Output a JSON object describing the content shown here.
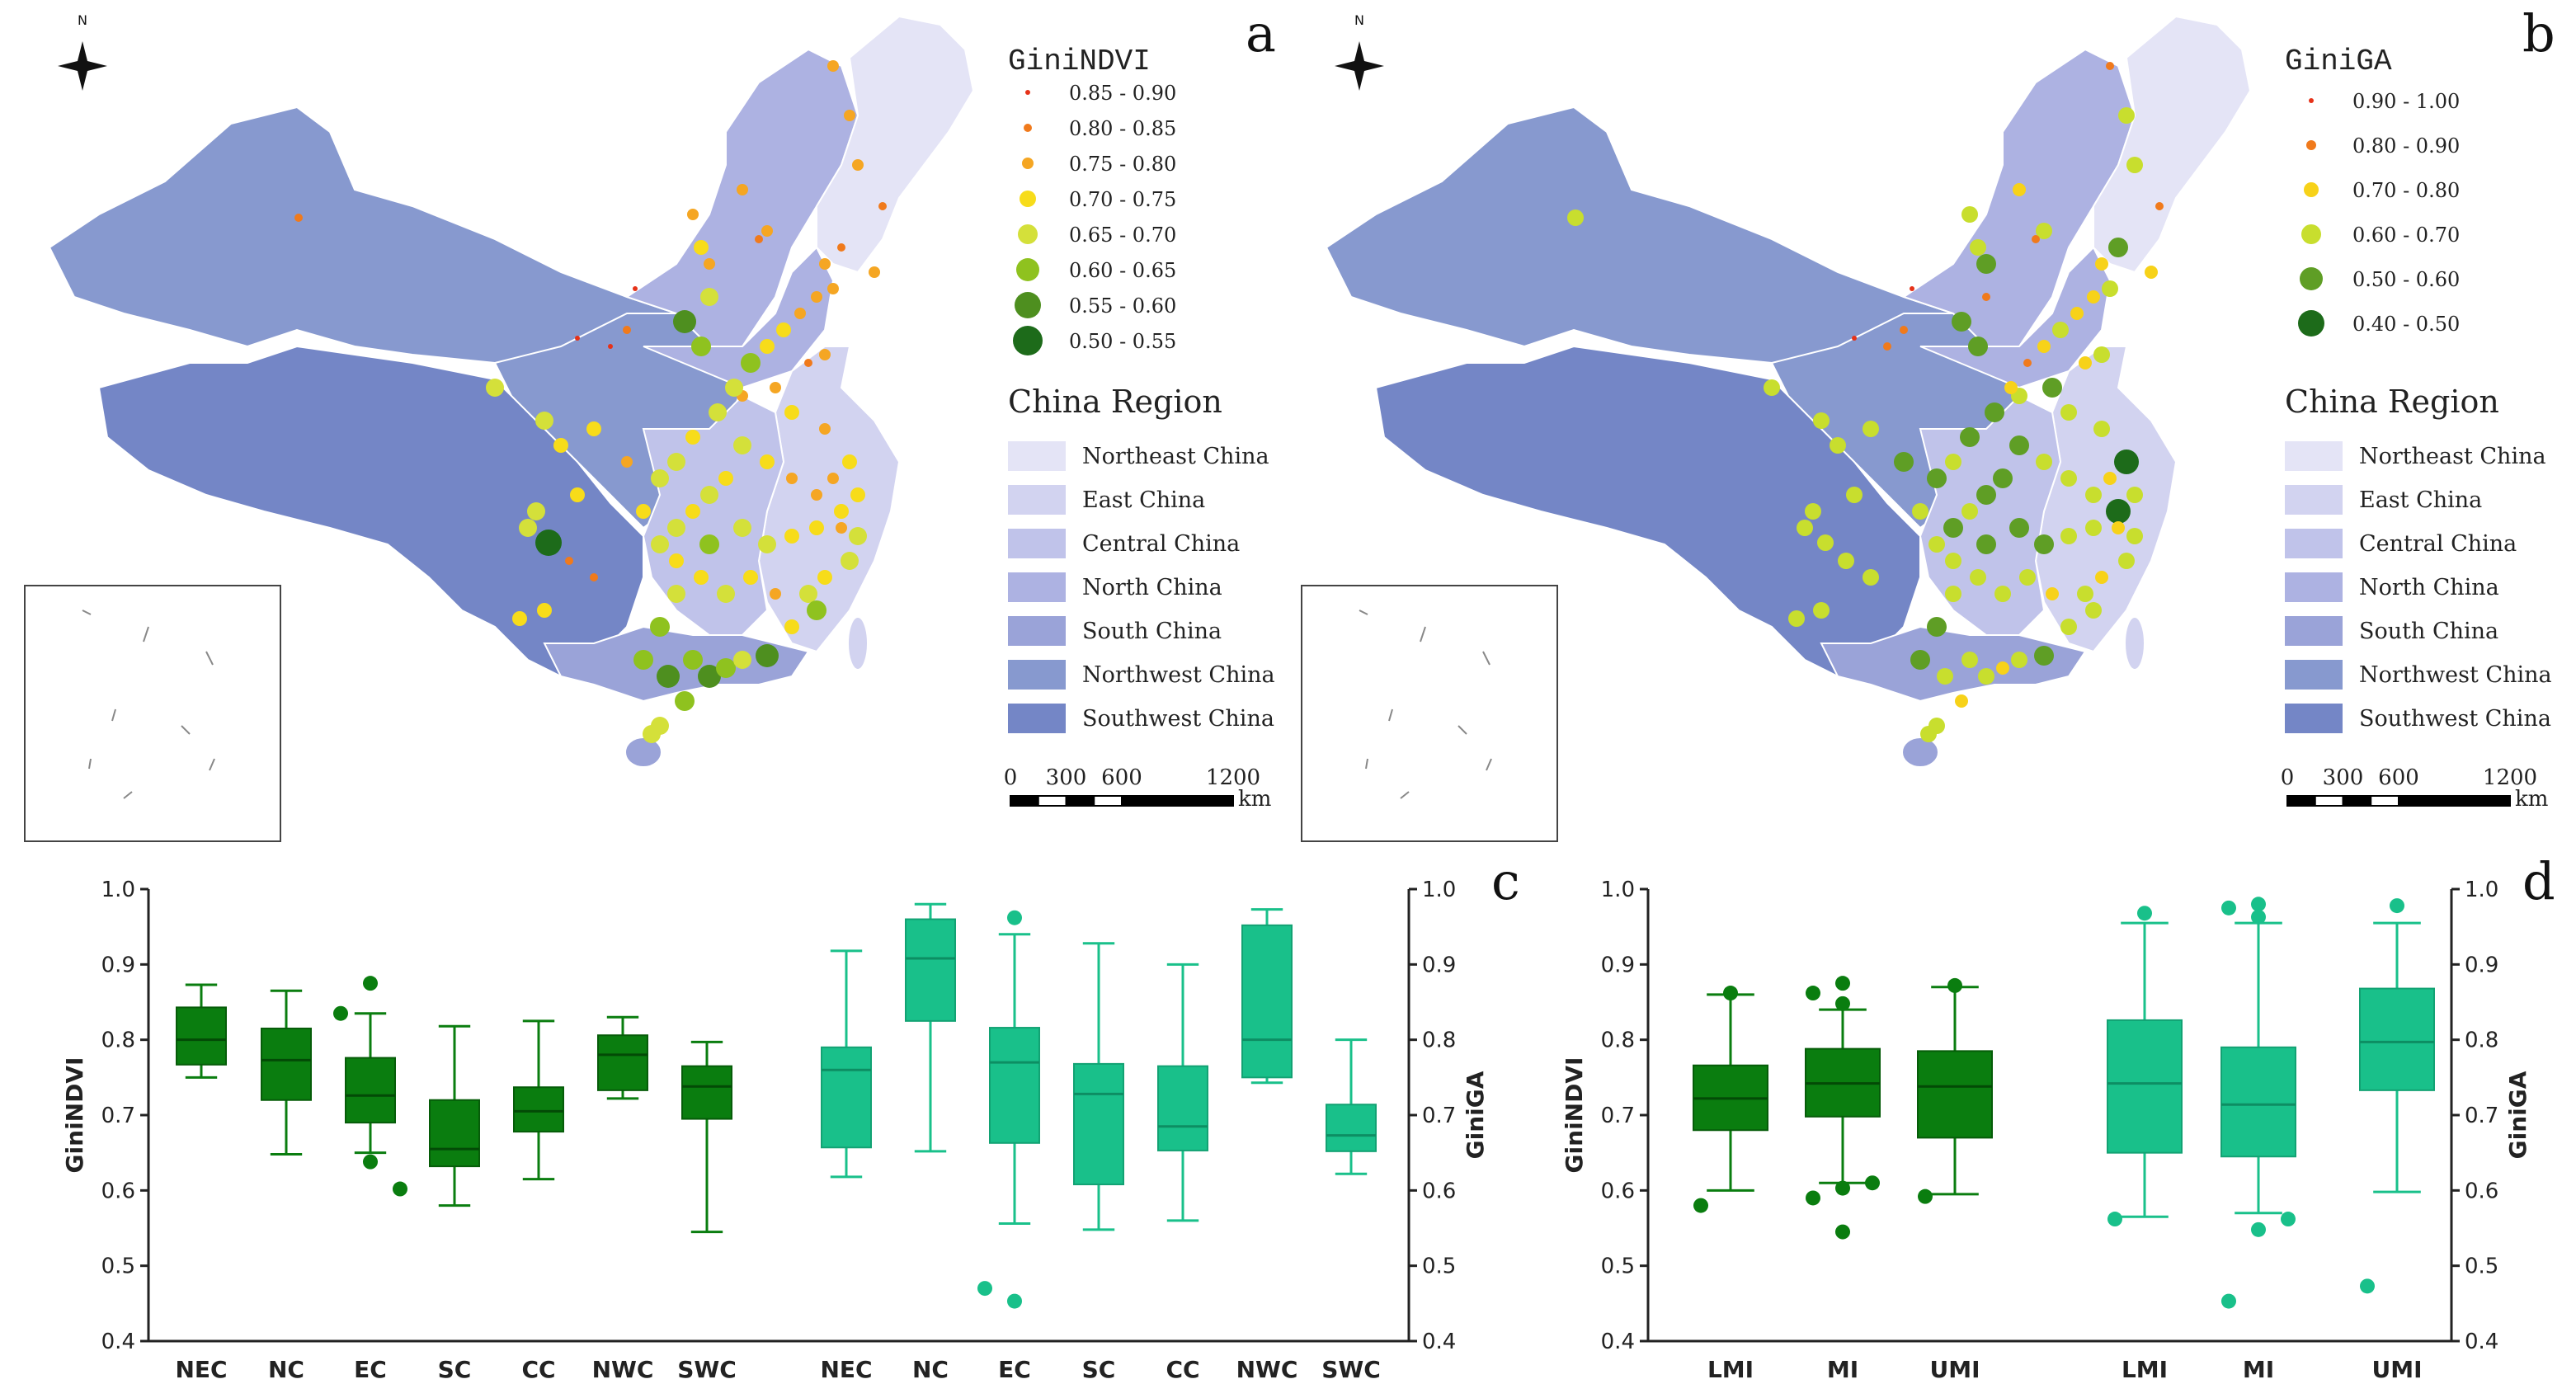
{
  "panels": {
    "a": {
      "letter": "a",
      "legend_title": "GiniNDVI",
      "classes": [
        {
          "label": "0.85 - 0.90",
          "color": "#e63219"
        },
        {
          "label": "0.80 - 0.85",
          "color": "#f07a1c"
        },
        {
          "label": "0.75 - 0.80",
          "color": "#f5a623"
        },
        {
          "label": "0.70 - 0.75",
          "color": "#f7dc1a"
        },
        {
          "label": "0.65 - 0.70",
          "color": "#d4e03a"
        },
        {
          "label": "0.60 - 0.65",
          "color": "#8fc21f"
        },
        {
          "label": "0.55 - 0.60",
          "color": "#4e8f1f"
        },
        {
          "label": "0.50 - 0.55",
          "color": "#1d6b1a"
        }
      ]
    },
    "b": {
      "letter": "b",
      "legend_title": "GiniGA",
      "classes": [
        {
          "label": "0.90 - 1.00",
          "color": "#e63219"
        },
        {
          "label": "0.80 - 0.90",
          "color": "#f07a1c"
        },
        {
          "label": "0.70 - 0.80",
          "color": "#f7d219"
        },
        {
          "label": "0.60 - 0.70",
          "color": "#c8de2e"
        },
        {
          "label": "0.50 - 0.60",
          "color": "#5f9e25"
        },
        {
          "label": "0.40 - 0.50",
          "color": "#1d6b1a"
        }
      ]
    }
  },
  "region_legend": {
    "title": "China Region",
    "items": [
      {
        "label": "Northeast China",
        "color": "#e4e4f6"
      },
      {
        "label": "East China",
        "color": "#d2d3f0"
      },
      {
        "label": "Central China",
        "color": "#c0c3ea"
      },
      {
        "label": "North China",
        "color": "#adb2e2"
      },
      {
        "label": "South China",
        "color": "#9aa3d8"
      },
      {
        "label": "Northwest China",
        "color": "#8799cf"
      },
      {
        "label": "Southwest China",
        "color": "#7486c6"
      }
    ]
  },
  "scalebar": {
    "ticks": [
      "0",
      "300",
      "600",
      "1200"
    ],
    "unit": "km"
  },
  "north_label": "N",
  "chart_data": [
    {
      "type": "boxplot",
      "panel": "c",
      "ylabel_left": "GiniNDVI",
      "ylabel_right": "GiniGA",
      "ylim": [
        0.4,
        1.0
      ],
      "ticks": [
        "0.4",
        "0.5",
        "0.6",
        "0.7",
        "0.8",
        "0.9",
        "1.0"
      ],
      "series": [
        {
          "name": "GiniNDVI",
          "color": "#0a7d0f",
          "categories": [
            "NEC",
            "NC",
            "EC",
            "SC",
            "CC",
            "NWC",
            "SWC"
          ],
          "boxes": [
            {
              "min": 0.75,
              "q1": 0.767,
              "median": 0.8,
              "q3": 0.843,
              "max": 0.873,
              "outliers": []
            },
            {
              "min": 0.648,
              "q1": 0.72,
              "median": 0.773,
              "q3": 0.815,
              "max": 0.865,
              "outliers": []
            },
            {
              "min": 0.65,
              "q1": 0.69,
              "median": 0.726,
              "q3": 0.776,
              "max": 0.835,
              "outliers": [
                0.875,
                0.835,
                0.638,
                0.602
              ]
            },
            {
              "min": 0.58,
              "q1": 0.632,
              "median": 0.655,
              "q3": 0.72,
              "max": 0.818,
              "outliers": []
            },
            {
              "min": 0.615,
              "q1": 0.678,
              "median": 0.705,
              "q3": 0.737,
              "max": 0.825,
              "outliers": []
            },
            {
              "min": 0.722,
              "q1": 0.733,
              "median": 0.78,
              "q3": 0.806,
              "max": 0.83,
              "outliers": []
            },
            {
              "min": 0.545,
              "q1": 0.695,
              "median": 0.738,
              "q3": 0.765,
              "max": 0.797,
              "outliers": []
            }
          ]
        },
        {
          "name": "GiniGA",
          "color": "#19c08a",
          "categories": [
            "NEC",
            "NC",
            "EC",
            "SC",
            "CC",
            "NWC",
            "SWC"
          ],
          "boxes": [
            {
              "min": 0.618,
              "q1": 0.657,
              "median": 0.76,
              "q3": 0.79,
              "max": 0.918,
              "outliers": []
            },
            {
              "min": 0.652,
              "q1": 0.825,
              "median": 0.908,
              "q3": 0.96,
              "max": 0.98,
              "outliers": []
            },
            {
              "min": 0.556,
              "q1": 0.663,
              "median": 0.77,
              "q3": 0.816,
              "max": 0.94,
              "outliers": [
                0.962,
                0.47,
                0.453
              ]
            },
            {
              "min": 0.548,
              "q1": 0.608,
              "median": 0.728,
              "q3": 0.768,
              "max": 0.928,
              "outliers": []
            },
            {
              "min": 0.56,
              "q1": 0.653,
              "median": 0.685,
              "q3": 0.765,
              "max": 0.9,
              "outliers": []
            },
            {
              "min": 0.743,
              "q1": 0.75,
              "median": 0.8,
              "q3": 0.952,
              "max": 0.973,
              "outliers": []
            },
            {
              "min": 0.622,
              "q1": 0.652,
              "median": 0.673,
              "q3": 0.714,
              "max": 0.8,
              "outliers": []
            }
          ]
        }
      ]
    },
    {
      "type": "boxplot",
      "panel": "d",
      "ylabel_left": "GiniNDVI",
      "ylabel_right": "GiniGA",
      "ylim": [
        0.4,
        1.0
      ],
      "ticks": [
        "0.4",
        "0.5",
        "0.6",
        "0.7",
        "0.8",
        "0.9",
        "1.0"
      ],
      "series": [
        {
          "name": "GiniNDVI",
          "color": "#0a7d0f",
          "categories": [
            "LMI",
            "MI",
            "UMI"
          ],
          "boxes": [
            {
              "min": 0.6,
              "q1": 0.68,
              "median": 0.722,
              "q3": 0.766,
              "max": 0.86,
              "outliers": [
                0.862,
                0.58
              ]
            },
            {
              "min": 0.61,
              "q1": 0.698,
              "median": 0.742,
              "q3": 0.788,
              "max": 0.84,
              "outliers": [
                0.875,
                0.862,
                0.848,
                0.61,
                0.603,
                0.59,
                0.545
              ]
            },
            {
              "min": 0.595,
              "q1": 0.67,
              "median": 0.738,
              "q3": 0.785,
              "max": 0.87,
              "outliers": [
                0.872,
                0.592
              ]
            }
          ]
        },
        {
          "name": "GiniGA",
          "color": "#19c08a",
          "categories": [
            "LMI",
            "MI",
            "UMI"
          ],
          "boxes": [
            {
              "min": 0.565,
              "q1": 0.65,
              "median": 0.742,
              "q3": 0.826,
              "max": 0.955,
              "outliers": [
                0.968,
                0.562
              ]
            },
            {
              "min": 0.57,
              "q1": 0.645,
              "median": 0.714,
              "q3": 0.79,
              "max": 0.955,
              "outliers": [
                0.98,
                0.975,
                0.963,
                0.562,
                0.548,
                0.453
              ]
            },
            {
              "min": 0.598,
              "q1": 0.733,
              "median": 0.797,
              "q3": 0.868,
              "max": 0.955,
              "outliers": [
                0.978,
                0.473
              ]
            }
          ]
        }
      ]
    }
  ]
}
